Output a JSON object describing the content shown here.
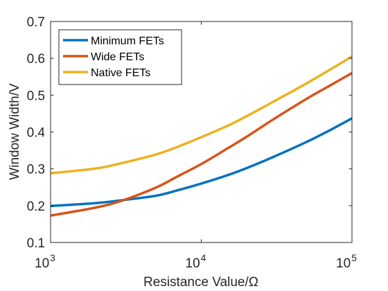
{
  "chart_data": {
    "type": "line",
    "title": "",
    "xlabel": "Resistance Value/Ω",
    "ylabel": "Window Width/V",
    "xscale": "log",
    "xlim": [
      1000,
      100000
    ],
    "ylim": [
      0.1,
      0.7
    ],
    "x_ticks": [
      {
        "value": 1000,
        "base": "10",
        "exp": "3"
      },
      {
        "value": 10000,
        "base": "10",
        "exp": "4"
      },
      {
        "value": 100000,
        "base": "10",
        "exp": "5"
      }
    ],
    "y_ticks": [
      {
        "value": 0.1,
        "label": "0.1"
      },
      {
        "value": 0.2,
        "label": "0.2"
      },
      {
        "value": 0.3,
        "label": "0.3"
      },
      {
        "value": 0.4,
        "label": "0.4"
      },
      {
        "value": 0.5,
        "label": "0.5"
      },
      {
        "value": 0.6,
        "label": "0.6"
      },
      {
        "value": 0.7,
        "label": "0.7"
      }
    ],
    "grid": false,
    "legend_position": "top-left",
    "x": [
      1000,
      2000,
      3000,
      5000,
      7000,
      10000,
      15000,
      20000,
      30000,
      50000,
      70000,
      100000
    ],
    "series": [
      {
        "name": "Minimum FETs",
        "color": "#0072BD",
        "values": [
          0.199,
          0.207,
          0.215,
          0.227,
          0.242,
          0.26,
          0.283,
          0.302,
          0.332,
          0.373,
          0.403,
          0.437
        ]
      },
      {
        "name": "Wide FETs",
        "color": "#D95319",
        "values": [
          0.173,
          0.195,
          0.214,
          0.249,
          0.28,
          0.313,
          0.356,
          0.387,
          0.434,
          0.49,
          0.524,
          0.56
        ]
      },
      {
        "name": "Native FETs",
        "color": "#EDB120",
        "values": [
          0.288,
          0.301,
          0.316,
          0.339,
          0.36,
          0.386,
          0.417,
          0.443,
          0.482,
          0.532,
          0.567,
          0.605
        ]
      }
    ]
  }
}
